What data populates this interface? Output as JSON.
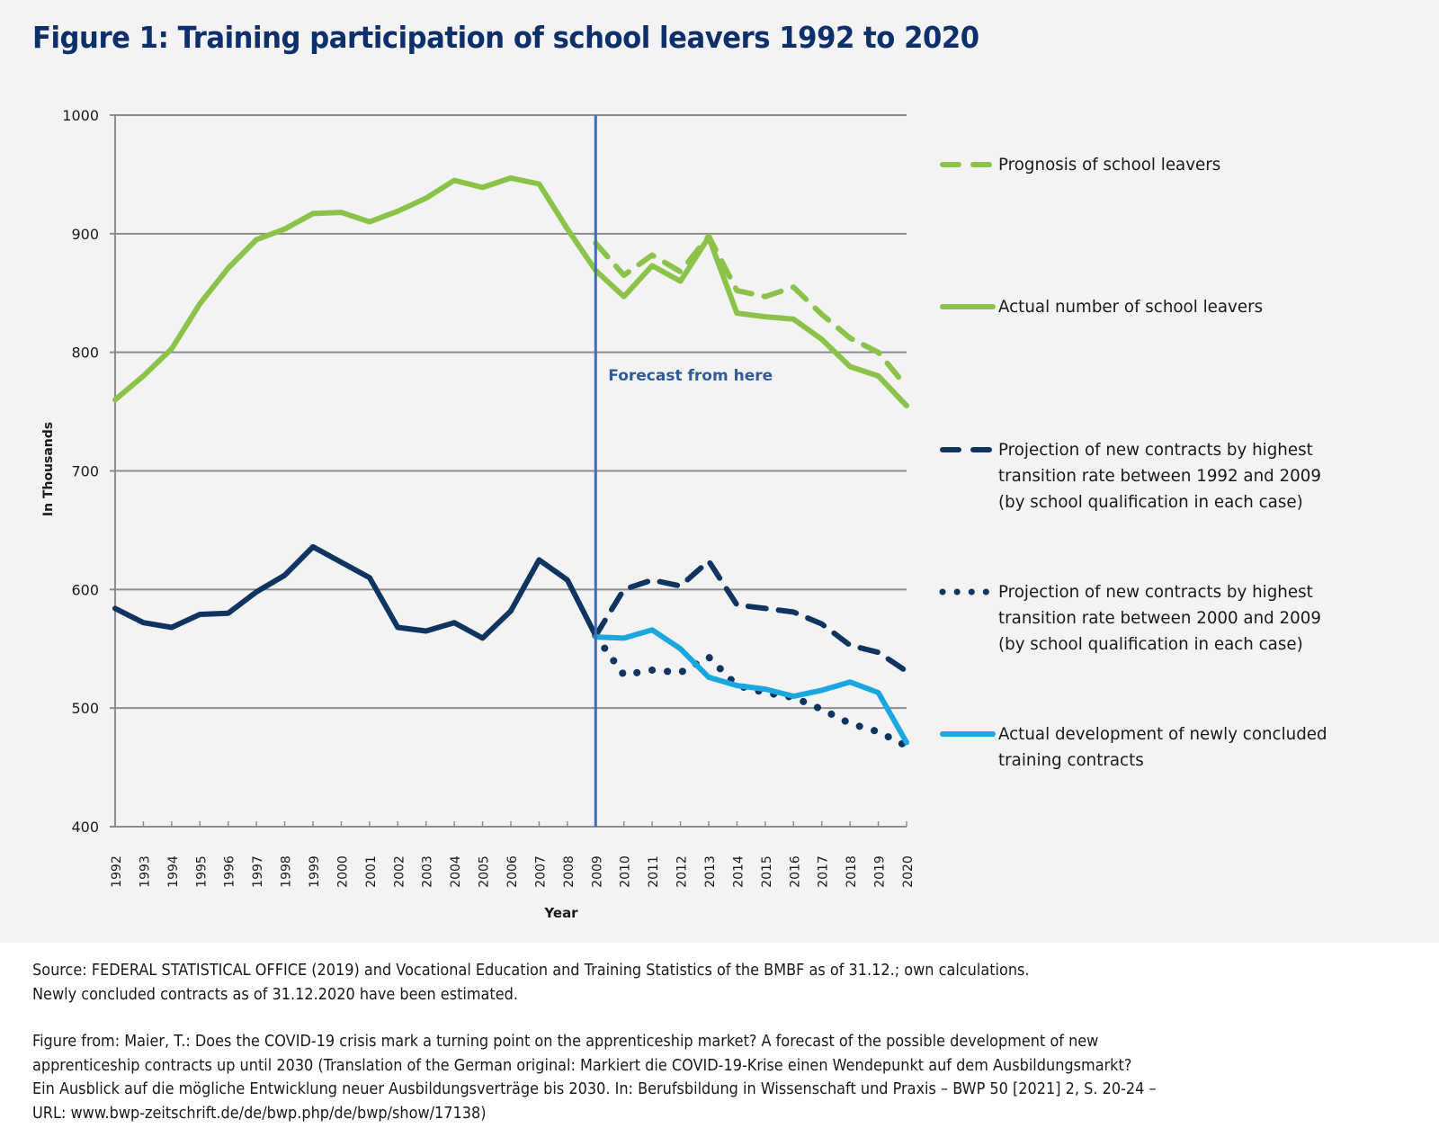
{
  "title": "Figure 1: Training participation of school leavers 1992 to 2020",
  "chart_data": {
    "type": "line",
    "title": "Figure 1: Training participation of school leavers 1992 to 2020",
    "xlabel": "Year",
    "ylabel": "In Thousands",
    "ylim": [
      400,
      1000
    ],
    "yticks": [
      400,
      500,
      600,
      700,
      800,
      900,
      1000
    ],
    "grid": true,
    "legend_position": "right",
    "x": [
      1992,
      1993,
      1994,
      1995,
      1996,
      1997,
      1998,
      1999,
      2000,
      2001,
      2002,
      2003,
      2004,
      2005,
      2006,
      2007,
      2008,
      2009,
      2010,
      2011,
      2012,
      2013,
      2014,
      2015,
      2016,
      2017,
      2018,
      2019,
      2020
    ],
    "annotation": {
      "label": "Forecast from here",
      "x": 2009,
      "color": "#3e6fb5"
    },
    "series": [
      {
        "name": "Prognosis of school leavers",
        "color": "#8bc34a",
        "style": "dashed",
        "x": [
          2009,
          2010,
          2011,
          2012,
          2013,
          2014,
          2015,
          2016,
          2017,
          2018,
          2019,
          2020
        ],
        "values": [
          892,
          865,
          882,
          868,
          898,
          852,
          847,
          855,
          832,
          812,
          800,
          771
        ]
      },
      {
        "name": "Actual number of school leavers",
        "color": "#8bc34a",
        "style": "solid",
        "x": [
          1992,
          1993,
          1994,
          1995,
          1996,
          1997,
          1998,
          1999,
          2000,
          2001,
          2002,
          2003,
          2004,
          2005,
          2006,
          2007,
          2008,
          2009,
          2010,
          2011,
          2012,
          2013,
          2014,
          2015,
          2016,
          2017,
          2018,
          2019,
          2020
        ],
        "values": [
          760,
          780,
          803,
          841,
          871,
          895,
          904,
          917,
          918,
          910,
          919,
          930,
          945,
          939,
          947,
          942,
          904,
          869,
          847,
          873,
          860,
          897,
          833,
          830,
          828,
          811,
          788,
          780,
          755
        ]
      },
      {
        "name": "Projection of new contracts by highest transition rate between 1992 and 2009 (by school qualification in each case)",
        "label_lines": "Projection of new contracts by highest\ntransition rate between 1992 and 2009\n(by school qualification in each case)",
        "color": "#0f3460",
        "style": "dashed",
        "x": [
          2009,
          2010,
          2011,
          2012,
          2013,
          2014,
          2015,
          2016,
          2017,
          2018,
          2019,
          2020
        ],
        "values": [
          561,
          600,
          608,
          603,
          624,
          587,
          584,
          581,
          571,
          553,
          547,
          531
        ]
      },
      {
        "name": "Projection of new contracts by highest transition rate between 2000 and 2009 (by school qualification in each case)",
        "label_lines": "Projection of new contracts by highest\ntransition rate between 2000 and 2009\n(by school qualification in each case)",
        "color": "#0f3460",
        "style": "dotted",
        "x": [
          2009,
          2010,
          2011,
          2012,
          2013,
          2014,
          2015,
          2016,
          2017,
          2018,
          2019,
          2020
        ],
        "values": [
          561,
          528,
          532,
          530,
          543,
          519,
          513,
          509,
          499,
          487,
          480,
          468
        ]
      },
      {
        "name": "Actual development of newly concluded training contracts",
        "label_lines": "Actual development of newly concluded\ntraining contracts",
        "color": "#1aa7e0",
        "style": "solid",
        "x": [
          2009,
          2010,
          2011,
          2012,
          2013,
          2014,
          2015,
          2016,
          2017,
          2018,
          2019,
          2020
        ],
        "values": [
          560,
          559,
          566,
          550,
          526,
          519,
          516,
          510,
          515,
          522,
          513,
          471
        ]
      },
      {
        "name": "Newly concluded training contracts (historical)",
        "color": "#0f3460",
        "style": "solid",
        "in_legend": false,
        "x": [
          1992,
          1993,
          1994,
          1995,
          1996,
          1997,
          1998,
          1999,
          2000,
          2001,
          2002,
          2003,
          2004,
          2005,
          2006,
          2007,
          2008,
          2009
        ],
        "values": [
          584,
          572,
          568,
          579,
          580,
          598,
          612,
          636,
          623,
          610,
          568,
          565,
          572,
          559,
          582,
          625,
          608,
          561
        ]
      }
    ]
  },
  "legend": [
    {
      "label": "Prognosis of school leavers"
    },
    {
      "label": "Actual number of school leavers"
    },
    {
      "label": "Projection of new contracts by highest\ntransition rate between 1992 and 2009\n(by school qualification in each case)"
    },
    {
      "label": "Projection of new contracts by highest\ntransition rate between 2000 and 2009\n(by school qualification in each case)"
    },
    {
      "label": "Actual development of newly concluded\ntraining contracts"
    }
  ],
  "footer": {
    "source": "Source: FEDERAL STATISTICAL OFFICE (2019) and Vocational Education and Training Statistics of the BMBF as of 31.12.; own calculations.\nNewly concluded contracts as of 31.12.2020 have been estimated.",
    "citation": "Figure from: Maier, T.: Does the COVID-19 crisis mark a turning point on the apprenticeship market? A forecast of the possible development of new\napprenticeship contracts up until 2030 (Translation of the German original: Markiert die COVID-19-Krise einen Wendepunkt auf dem Ausbildungsmarkt?\nEin Ausblick auf die mögliche Entwicklung neuer Ausbildungsverträge bis 2030. In: Berufsbildung in Wissenschaft und Praxis – BWP 50 [2021] 2, S. 20-24 –\nURL: www.bwp-zeitschrift.de/de/bwp.php/de/bwp/show/17138)"
  }
}
